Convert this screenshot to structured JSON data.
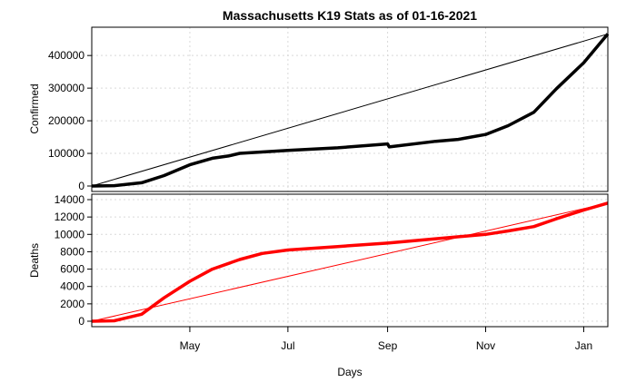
{
  "chart_data": {
    "title": "Massachusetts K19 Stats as of 01-16-2021",
    "xlabel": "Days",
    "x_ticks": [
      {
        "label": "May",
        "date": "2020-05-01"
      },
      {
        "label": "Jul",
        "date": "2020-07-01"
      },
      {
        "label": "Sep",
        "date": "2020-09-01"
      },
      {
        "label": "Nov",
        "date": "2020-11-01"
      },
      {
        "label": "Jan",
        "date": "2021-01-01"
      }
    ],
    "x_range": [
      "2020-03-01",
      "2021-01-16"
    ],
    "panels": [
      {
        "type": "line",
        "ylabel": "Confirmed",
        "color": "#000000",
        "ylim": [
          0,
          470000
        ],
        "yticks": [
          0,
          100000,
          200000,
          300000,
          400000
        ],
        "grid": true,
        "series": {
          "x": [
            "2020-03-01",
            "2020-03-15",
            "2020-04-01",
            "2020-04-15",
            "2020-05-01",
            "2020-05-15",
            "2020-05-25",
            "2020-06-01",
            "2020-07-01",
            "2020-08-01",
            "2020-09-01",
            "2020-09-02",
            "2020-10-01",
            "2020-10-15",
            "2020-11-01",
            "2020-11-15",
            "2020-12-01",
            "2020-12-15",
            "2021-01-01",
            "2021-01-16"
          ],
          "y": [
            0,
            1000,
            10000,
            32000,
            65000,
            85000,
            92000,
            100000,
            109000,
            117000,
            129000,
            120000,
            137000,
            143000,
            158000,
            185000,
            226000,
            298000,
            378000,
            466000
          ]
        },
        "reference_line": {
          "x": [
            "2020-03-01",
            "2021-01-16"
          ],
          "y": [
            0,
            466000
          ],
          "color": "#000000"
        }
      },
      {
        "type": "line",
        "ylabel": "Deaths",
        "color": "#ff0000",
        "ylim": [
          0,
          14000
        ],
        "yticks": [
          0,
          2000,
          4000,
          6000,
          8000,
          10000,
          12000,
          14000
        ],
        "grid": true,
        "series": {
          "x": [
            "2020-03-01",
            "2020-03-15",
            "2020-04-01",
            "2020-04-15",
            "2020-05-01",
            "2020-05-15",
            "2020-06-01",
            "2020-06-15",
            "2020-07-01",
            "2020-08-01",
            "2020-09-01",
            "2020-10-01",
            "2020-11-01",
            "2020-11-15",
            "2020-12-01",
            "2020-12-15",
            "2021-01-01",
            "2021-01-16"
          ],
          "y": [
            0,
            50,
            800,
            2700,
            4600,
            6000,
            7100,
            7800,
            8200,
            8600,
            9000,
            9500,
            10000,
            10400,
            10900,
            11800,
            12800,
            13600
          ]
        },
        "reference_line": {
          "x": [
            "2020-03-01",
            "2021-01-16"
          ],
          "y": [
            0,
            13600
          ],
          "color": "#ff0000"
        }
      }
    ]
  }
}
